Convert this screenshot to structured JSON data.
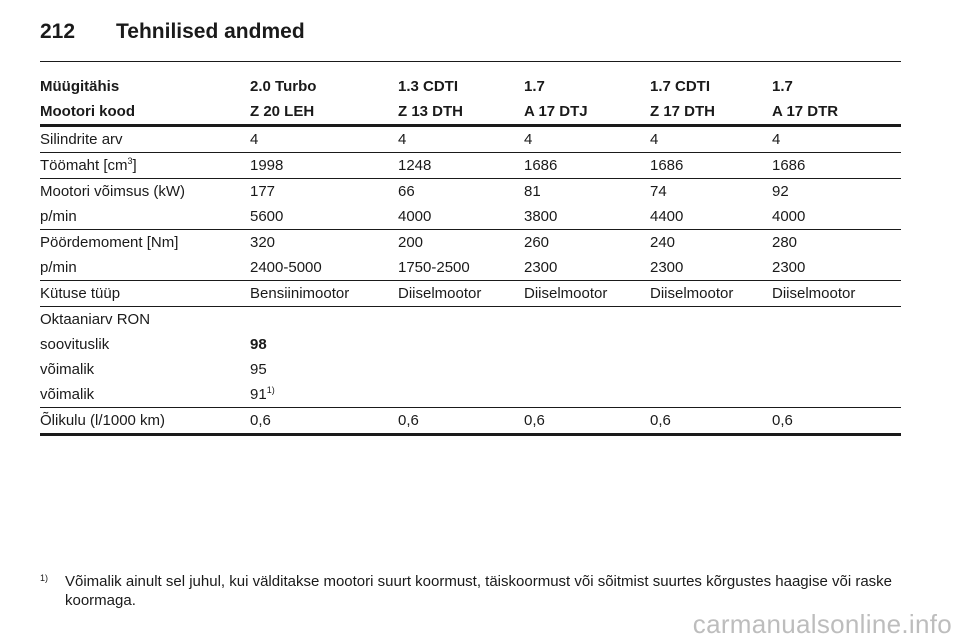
{
  "header": {
    "page_number": "212",
    "title": "Tehnilised andmed"
  },
  "table": {
    "header_rows": [
      [
        "Müügitähis",
        "2.0 Turbo",
        "1.3 CDTI",
        "1.7",
        "1.7 CDTI",
        "1.7"
      ],
      [
        "Mootori kood",
        "Z 20 LEH",
        "Z 13 DTH",
        "A 17 DTJ",
        "Z 17 DTH",
        "A 17 DTR"
      ]
    ],
    "cylinders": {
      "label": "Silindrite arv",
      "values": [
        "4",
        "4",
        "4",
        "4",
        "4"
      ]
    },
    "displacement": {
      "label_prefix": "Töömaht [cm",
      "label_sup": "3",
      "label_suffix": "]",
      "values": [
        "1998",
        "1248",
        "1686",
        "1686",
        "1686"
      ]
    },
    "power": {
      "label": "Mootori võimsus (kW)",
      "values": [
        "177",
        "66",
        "81",
        "74",
        "92"
      ]
    },
    "power_rpm": {
      "label": "p/min",
      "values": [
        "5600",
        "4000",
        "3800",
        "4400",
        "4000"
      ]
    },
    "torque": {
      "label": "Pöördemoment [Nm]",
      "values": [
        "320",
        "200",
        "260",
        "240",
        "280"
      ]
    },
    "torque_rpm": {
      "label": "p/min",
      "values": [
        "2400-5000",
        "1750-2500",
        "2300",
        "2300",
        "2300"
      ]
    },
    "fuel_type": {
      "label": "Kütuse tüüp",
      "values": [
        "Bensiinimootor",
        "Diiselmootor",
        "Diiselmootor",
        "Diiselmootor",
        "Diiselmootor"
      ]
    },
    "octane": {
      "label": "Oktaaniarv RON",
      "recommended": {
        "label": "soovituslik",
        "value": "98"
      },
      "possible1": {
        "label": "võimalik",
        "value": "95"
      },
      "possible2": {
        "label": "võimalik",
        "value": "91",
        "sup": "1)"
      }
    },
    "oil": {
      "label": "Õlikulu (l/1000 km)",
      "values": [
        "0,6",
        "0,6",
        "0,6",
        "0,6",
        "0,6"
      ]
    }
  },
  "footnote": {
    "marker": "1)",
    "text": "Võimalik ainult sel juhul, kui välditakse mootori suurt koormust, täiskoormust või sõitmist suurtes kõrgustes haagise või raske koormaga."
  },
  "watermark": "carmanualsonline.info"
}
